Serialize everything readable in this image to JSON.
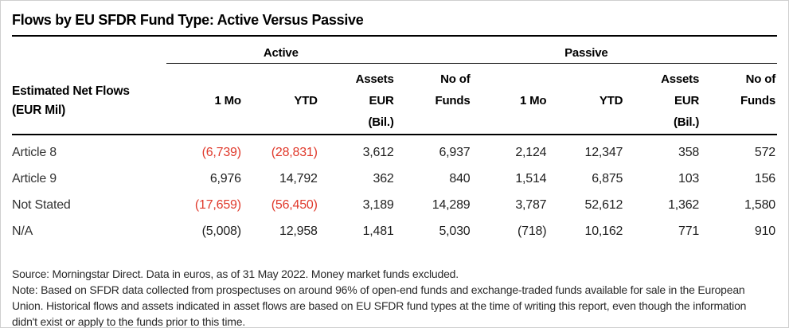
{
  "title": "Flows by EU SFDR Fund Type: Active Versus Passive",
  "table": {
    "row_header": {
      "line1": "Estimated Net Flows",
      "line2": "(EUR Mil)"
    },
    "groups": [
      {
        "label": "Active"
      },
      {
        "label": "Passive"
      }
    ],
    "columns": [
      {
        "lines": [
          "1 Mo"
        ]
      },
      {
        "lines": [
          "YTD"
        ]
      },
      {
        "lines": [
          "Assets",
          "EUR",
          "(Bil.)"
        ]
      },
      {
        "lines": [
          "No of",
          "Funds"
        ]
      },
      {
        "lines": [
          "1 Mo"
        ]
      },
      {
        "lines": [
          "YTD"
        ]
      },
      {
        "lines": [
          "Assets",
          "EUR",
          "(Bil.)"
        ]
      },
      {
        "lines": [
          "No of",
          "Funds"
        ]
      }
    ],
    "rows": [
      {
        "label": "Article 8",
        "cells": [
          {
            "text": "(6,739)",
            "negative_red": true
          },
          {
            "text": "(28,831)",
            "negative_red": true
          },
          {
            "text": "3,612",
            "negative_red": false
          },
          {
            "text": "6,937",
            "negative_red": false
          },
          {
            "text": "2,124",
            "negative_red": false
          },
          {
            "text": "12,347",
            "negative_red": false
          },
          {
            "text": "358",
            "negative_red": false
          },
          {
            "text": "572",
            "negative_red": false
          }
        ]
      },
      {
        "label": "Article 9",
        "cells": [
          {
            "text": "6,976",
            "negative_red": false
          },
          {
            "text": "14,792",
            "negative_red": false
          },
          {
            "text": "362",
            "negative_red": false
          },
          {
            "text": "840",
            "negative_red": false
          },
          {
            "text": "1,514",
            "negative_red": false
          },
          {
            "text": "6,875",
            "negative_red": false
          },
          {
            "text": "103",
            "negative_red": false
          },
          {
            "text": "156",
            "negative_red": false
          }
        ]
      },
      {
        "label": "Not Stated",
        "cells": [
          {
            "text": "(17,659)",
            "negative_red": true
          },
          {
            "text": "(56,450)",
            "negative_red": true
          },
          {
            "text": "3,189",
            "negative_red": false
          },
          {
            "text": "14,289",
            "negative_red": false
          },
          {
            "text": "3,787",
            "negative_red": false
          },
          {
            "text": "52,612",
            "negative_red": false
          },
          {
            "text": "1,362",
            "negative_red": false
          },
          {
            "text": "1,580",
            "negative_red": false
          }
        ]
      },
      {
        "label": "N/A",
        "cells": [
          {
            "text": "(5,008)",
            "negative_red": false
          },
          {
            "text": "12,958",
            "negative_red": false
          },
          {
            "text": "1,481",
            "negative_red": false
          },
          {
            "text": "5,030",
            "negative_red": false
          },
          {
            "text": "(718)",
            "negative_red": false
          },
          {
            "text": "10,162",
            "negative_red": false
          },
          {
            "text": "771",
            "negative_red": false
          },
          {
            "text": "910",
            "negative_red": false
          }
        ]
      }
    ]
  },
  "footnotes": {
    "lines": [
      "Source: Morningstar Direct. Data in euros, as of 31 May 2022. Money market funds excluded.",
      "Note: Based on SFDR data collected from prospectuses on around 96% of open-end funds and exchange-traded funds available for sale in the European",
      "Union. Historical flows and assets indicated in asset flows are based on EU SFDR fund types at the time of writing this report, even though the information",
      "didn't exist or apply to the funds prior to this time."
    ]
  },
  "colors": {
    "negative_red": "#e03a2c",
    "rule_black": "#000000",
    "text": "#222222",
    "frame_border": "#cfcfcf"
  }
}
